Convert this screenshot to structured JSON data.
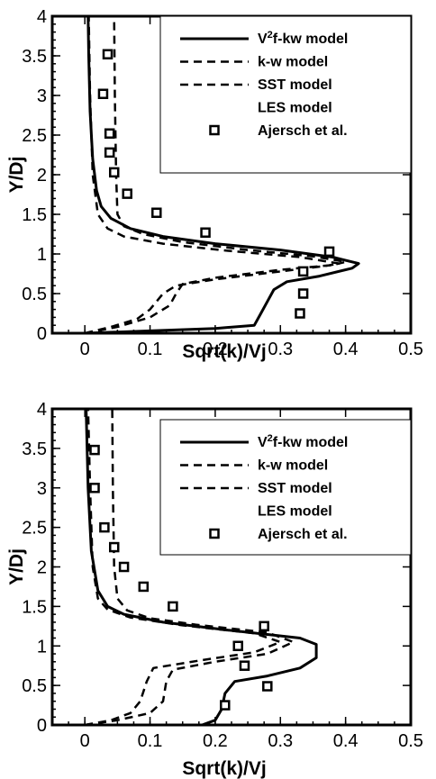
{
  "chart_data": [
    {
      "type": "line",
      "xlabel": "Sqrt(k)/Vj",
      "ylabel": "Y/Dj",
      "xlim": [
        -0.05,
        0.5
      ],
      "ylim": [
        0,
        4
      ],
      "xticks": [
        "0",
        "0.1",
        "0.2",
        "0.3",
        "0.4",
        "0.5"
      ],
      "yticks": [
        "0",
        "0.5",
        "1",
        "1.5",
        "2",
        "2.5",
        "3",
        "3.5",
        "4"
      ],
      "legend_position": "top-right",
      "series": [
        {
          "name": "V2f-kw model",
          "legend_base": "V",
          "legend_sup": "2",
          "legend_rest": "f-kw model",
          "style": "solid",
          "points": [
            [
              0.0,
              0.0
            ],
            [
              0.1,
              0.03
            ],
            [
              0.2,
              0.06
            ],
            [
              0.26,
              0.1
            ],
            [
              0.27,
              0.25
            ],
            [
              0.28,
              0.4
            ],
            [
              0.29,
              0.55
            ],
            [
              0.31,
              0.65
            ],
            [
              0.36,
              0.72
            ],
            [
              0.41,
              0.82
            ],
            [
              0.42,
              0.88
            ],
            [
              0.38,
              0.96
            ],
            [
              0.3,
              1.05
            ],
            [
              0.2,
              1.13
            ],
            [
              0.12,
              1.22
            ],
            [
              0.07,
              1.32
            ],
            [
              0.04,
              1.45
            ],
            [
              0.025,
              1.6
            ],
            [
              0.018,
              1.8
            ],
            [
              0.012,
              2.2
            ],
            [
              0.008,
              2.8
            ],
            [
              0.006,
              3.5
            ],
            [
              0.005,
              4.0
            ]
          ]
        },
        {
          "name": "k-w model",
          "legend_base": "k-w model",
          "style": "dashed",
          "points": [
            [
              0.0,
              0.0
            ],
            [
              0.05,
              0.08
            ],
            [
              0.1,
              0.2
            ],
            [
              0.13,
              0.35
            ],
            [
              0.14,
              0.5
            ],
            [
              0.15,
              0.62
            ],
            [
              0.2,
              0.7
            ],
            [
              0.3,
              0.8
            ],
            [
              0.38,
              0.86
            ],
            [
              0.4,
              0.9
            ],
            [
              0.35,
              0.97
            ],
            [
              0.25,
              1.05
            ],
            [
              0.15,
              1.15
            ],
            [
              0.09,
              1.25
            ],
            [
              0.06,
              1.35
            ],
            [
              0.05,
              1.5
            ],
            [
              0.048,
              2.0
            ],
            [
              0.046,
              3.0
            ],
            [
              0.045,
              4.0
            ]
          ]
        },
        {
          "name": "SST model",
          "legend_base": "SST model",
          "style": "dashed",
          "points": [
            [
              0.0,
              0.0
            ],
            [
              0.04,
              0.08
            ],
            [
              0.08,
              0.18
            ],
            [
              0.1,
              0.3
            ],
            [
              0.12,
              0.5
            ],
            [
              0.14,
              0.6
            ],
            [
              0.2,
              0.68
            ],
            [
              0.3,
              0.78
            ],
            [
              0.37,
              0.85
            ],
            [
              0.39,
              0.88
            ],
            [
              0.33,
              0.96
            ],
            [
              0.22,
              1.04
            ],
            [
              0.12,
              1.13
            ],
            [
              0.06,
              1.22
            ],
            [
              0.035,
              1.32
            ],
            [
              0.02,
              1.5
            ],
            [
              0.012,
              2.0
            ],
            [
              0.008,
              3.0
            ],
            [
              0.006,
              4.0
            ]
          ]
        },
        {
          "name": "LES model",
          "legend_base": "LES model",
          "style": "none",
          "points": []
        },
        {
          "name": "Ajersch et al.",
          "legend_base": "Ajersch et al.",
          "style": "markers",
          "points": [
            [
              0.33,
              0.25
            ],
            [
              0.335,
              0.5
            ],
            [
              0.335,
              0.78
            ],
            [
              0.375,
              1.03
            ],
            [
              0.185,
              1.27
            ],
            [
              0.11,
              1.52
            ],
            [
              0.065,
              1.76
            ],
            [
              0.045,
              2.03
            ],
            [
              0.038,
              2.28
            ],
            [
              0.038,
              2.52
            ],
            [
              0.028,
              3.02
            ],
            [
              0.035,
              3.52
            ]
          ]
        }
      ]
    },
    {
      "type": "line",
      "xlabel": "Sqrt(k)/Vj",
      "ylabel": "Y/Dj",
      "xlim": [
        -0.05,
        0.5
      ],
      "ylim": [
        0,
        4
      ],
      "xticks": [
        "0",
        "0.1",
        "0.2",
        "0.3",
        "0.4",
        "0.5"
      ],
      "yticks": [
        "0",
        "0.5",
        "1",
        "1.5",
        "2",
        "2.5",
        "3",
        "3.5",
        "4"
      ],
      "legend_position": "top-right",
      "series": [
        {
          "name": "V2f-kw model",
          "legend_base": "V",
          "legend_sup": "2",
          "legend_rest": "f-kw model",
          "style": "solid",
          "points": [
            [
              0.18,
              0.0
            ],
            [
              0.2,
              0.06
            ],
            [
              0.21,
              0.2
            ],
            [
              0.215,
              0.4
            ],
            [
              0.23,
              0.55
            ],
            [
              0.28,
              0.62
            ],
            [
              0.33,
              0.72
            ],
            [
              0.355,
              0.85
            ],
            [
              0.355,
              1.02
            ],
            [
              0.33,
              1.1
            ],
            [
              0.22,
              1.2
            ],
            [
              0.12,
              1.3
            ],
            [
              0.06,
              1.4
            ],
            [
              0.035,
              1.5
            ],
            [
              0.02,
              1.7
            ],
            [
              0.01,
              2.2
            ],
            [
              0.005,
              3.0
            ],
            [
              0.002,
              4.0
            ]
          ]
        },
        {
          "name": "k-w model",
          "legend_base": "k-w model",
          "style": "dashed",
          "points": [
            [
              0.0,
              0.0
            ],
            [
              0.05,
              0.06
            ],
            [
              0.1,
              0.15
            ],
            [
              0.12,
              0.3
            ],
            [
              0.125,
              0.55
            ],
            [
              0.135,
              0.7
            ],
            [
              0.2,
              0.8
            ],
            [
              0.28,
              0.9
            ],
            [
              0.32,
              1.05
            ],
            [
              0.28,
              1.17
            ],
            [
              0.17,
              1.27
            ],
            [
              0.1,
              1.35
            ],
            [
              0.065,
              1.45
            ],
            [
              0.05,
              1.6
            ],
            [
              0.045,
              2.0
            ],
            [
              0.043,
              3.0
            ],
            [
              0.042,
              4.0
            ]
          ]
        },
        {
          "name": "SST model",
          "legend_base": "SST model",
          "style": "dashed",
          "points": [
            [
              0.0,
              0.0
            ],
            [
              0.04,
              0.06
            ],
            [
              0.07,
              0.15
            ],
            [
              0.085,
              0.3
            ],
            [
              0.095,
              0.55
            ],
            [
              0.105,
              0.72
            ],
            [
              0.18,
              0.82
            ],
            [
              0.26,
              0.92
            ],
            [
              0.3,
              1.05
            ],
            [
              0.26,
              1.16
            ],
            [
              0.15,
              1.26
            ],
            [
              0.07,
              1.36
            ],
            [
              0.035,
              1.46
            ],
            [
              0.02,
              1.6
            ],
            [
              0.012,
              2.0
            ],
            [
              0.008,
              3.0
            ],
            [
              0.005,
              4.0
            ]
          ]
        },
        {
          "name": "LES model",
          "legend_base": "LES model",
          "style": "none",
          "points": []
        },
        {
          "name": "Ajersch et al.",
          "legend_base": "Ajersch et al.",
          "style": "markers",
          "points": [
            [
              0.215,
              0.25
            ],
            [
              0.245,
              0.75
            ],
            [
              0.28,
              0.49
            ],
            [
              0.235,
              1.0
            ],
            [
              0.275,
              1.25
            ],
            [
              0.135,
              1.5
            ],
            [
              0.09,
              1.75
            ],
            [
              0.06,
              2.0
            ],
            [
              0.045,
              2.25
            ],
            [
              0.03,
              2.5
            ],
            [
              0.015,
              3.0
            ],
            [
              0.015,
              3.48
            ]
          ]
        }
      ]
    }
  ]
}
